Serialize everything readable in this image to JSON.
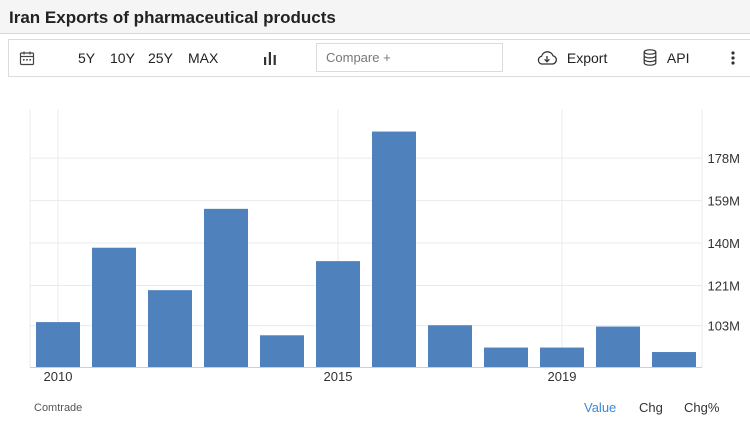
{
  "header": {
    "title": "Iran Exports of pharmaceutical products"
  },
  "toolbar": {
    "calendar_icon": "calendar-icon",
    "ranges": [
      "5Y",
      "10Y",
      "25Y",
      "MAX"
    ],
    "chart_type_icon": "bar-chart-icon",
    "compare_placeholder": "Compare +",
    "export_label": "Export",
    "export_icon": "cloud-download-icon",
    "api_label": "API",
    "api_icon": "database-icon",
    "more_icon": "more-vertical-icon"
  },
  "chart_data": {
    "type": "bar",
    "categories": [
      "2010",
      "2011",
      "2012",
      "2013",
      "2014",
      "2015",
      "2016",
      "2017",
      "2018",
      "2019",
      "2020",
      "2021"
    ],
    "values": [
      104.6,
      137.9,
      118.9,
      155.3,
      98.7,
      131.9,
      189.9,
      103.2,
      93.2,
      93.2,
      102.6,
      91.2
    ],
    "x_tick_labels": [
      "2010",
      "2015",
      "2019"
    ],
    "y_ticks": [
      103,
      121,
      140,
      159,
      178
    ],
    "y_tick_labels": [
      "103M",
      "121M",
      "140M",
      "159M",
      "178M"
    ],
    "ylim": [
      84.5,
      200
    ],
    "y_axis_position": "right",
    "grid": true,
    "bar_color": "#4f81bd",
    "title": "",
    "xlabel": "",
    "ylabel": ""
  },
  "footer": {
    "source": "Comtrade",
    "tabs": [
      "Value",
      "Chg",
      "Chg%"
    ],
    "active_tab": "Value",
    "active_color": "#3b8ad9"
  }
}
